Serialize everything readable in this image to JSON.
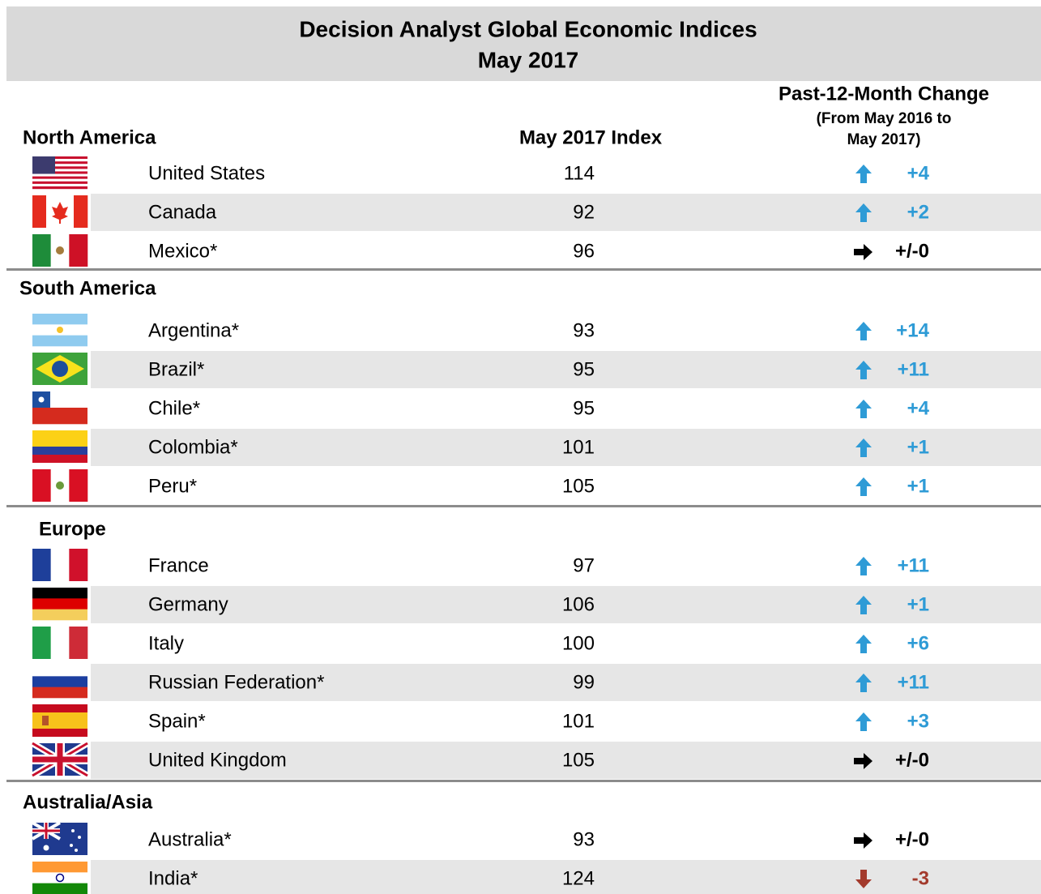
{
  "header": {
    "title": "Decision Analyst Global Economic Indices",
    "subtitle": "May 2017"
  },
  "columns": {
    "index": "May 2017 Index",
    "change": "Past-12-Month Change",
    "change_note": [
      "(From May 2016 to",
      "May 2017)"
    ]
  },
  "regions": [
    {
      "name": "North America",
      "rows": [
        {
          "country": "United States",
          "index": 114,
          "change": "+4"
        },
        {
          "country": "Canada",
          "index": 92,
          "change": "+2"
        },
        {
          "country": "Mexico*",
          "index": 96,
          "change": "+/-0"
        }
      ]
    },
    {
      "name": "South America",
      "rows": [
        {
          "country": "Argentina*",
          "index": 93,
          "change": "+14"
        },
        {
          "country": "Brazil*",
          "index": 95,
          "change": "+11"
        },
        {
          "country": "Chile*",
          "index": 95,
          "change": "+4"
        },
        {
          "country": "Colombia*",
          "index": 101,
          "change": "+1"
        },
        {
          "country": "Peru*",
          "index": 105,
          "change": "+1"
        }
      ]
    },
    {
      "name": "Europe",
      "rows": [
        {
          "country": "France",
          "index": 97,
          "change": "+11"
        },
        {
          "country": "Germany",
          "index": 106,
          "change": "+1"
        },
        {
          "country": "Italy",
          "index": 100,
          "change": "+6"
        },
        {
          "country": "Russian Federation*",
          "index": 99,
          "change": "+11"
        },
        {
          "country": "Spain*",
          "index": 101,
          "change": "+3"
        },
        {
          "country": "United Kingdom",
          "index": 105,
          "change": "+/-0"
        }
      ]
    },
    {
      "name": "Australia/Asia",
      "rows": [
        {
          "country": "Australia*",
          "index": 93,
          "change": "+/-0"
        },
        {
          "country": "India*",
          "index": 124,
          "change": "-3"
        }
      ]
    }
  ]
}
